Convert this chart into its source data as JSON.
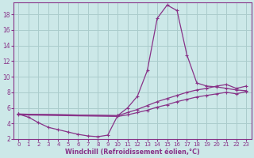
{
  "background_color": "#cce8e8",
  "grid_color": "#aacccc",
  "line_color": "#883388",
  "xlabel": "Windchill (Refroidissement éolien,°C)",
  "xlim": [
    -0.5,
    23.5
  ],
  "ylim": [
    2,
    19.5
  ],
  "xticks": [
    0,
    1,
    2,
    3,
    4,
    5,
    6,
    7,
    8,
    9,
    10,
    11,
    12,
    13,
    14,
    15,
    16,
    17,
    18,
    19,
    20,
    21,
    22,
    23
  ],
  "yticks": [
    2,
    4,
    6,
    8,
    10,
    12,
    14,
    16,
    18
  ],
  "curve_dip": {
    "x": [
      0,
      1,
      2,
      3,
      4,
      5,
      6,
      7,
      8,
      9,
      10
    ],
    "y": [
      5.2,
      4.8,
      4.1,
      3.5,
      3.2,
      2.9,
      2.6,
      2.4,
      2.3,
      2.5,
      5.0
    ]
  },
  "curve_peak": {
    "x": [
      0,
      10,
      11,
      12,
      13,
      14,
      15,
      16,
      17,
      18,
      19,
      20,
      21,
      22,
      23
    ],
    "y": [
      5.2,
      5.0,
      6.0,
      7.5,
      10.8,
      17.5,
      19.2,
      18.5,
      12.8,
      9.2,
      8.8,
      8.7,
      8.5,
      8.3,
      8.2
    ]
  },
  "curve_mid_high": {
    "x": [
      0,
      10,
      11,
      12,
      13,
      14,
      15,
      16,
      17,
      18,
      19,
      20,
      21,
      22,
      23
    ],
    "y": [
      5.2,
      5.0,
      5.4,
      5.8,
      6.3,
      6.8,
      7.2,
      7.6,
      8.0,
      8.3,
      8.5,
      8.8,
      9.0,
      8.5,
      8.8
    ]
  },
  "curve_mid_low": {
    "x": [
      0,
      10,
      11,
      12,
      13,
      14,
      15,
      16,
      17,
      18,
      19,
      20,
      21,
      22,
      23
    ],
    "y": [
      5.1,
      4.9,
      5.1,
      5.4,
      5.7,
      6.1,
      6.4,
      6.8,
      7.1,
      7.4,
      7.6,
      7.8,
      8.0,
      7.8,
      8.1
    ]
  }
}
